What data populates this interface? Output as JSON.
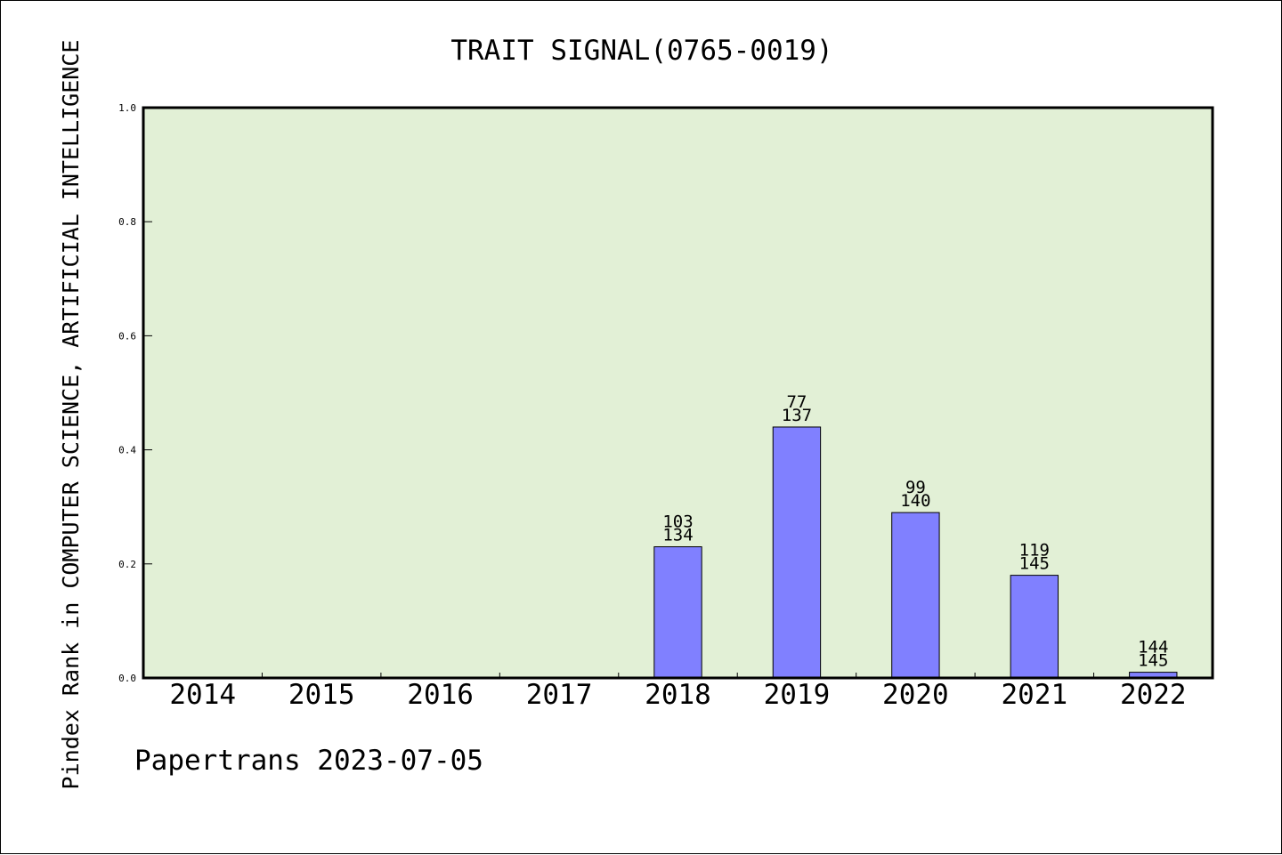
{
  "chart_data": {
    "type": "bar",
    "title": "TRAIT SIGNAL(0765-0019)",
    "ylabel": "Pindex Rank in COMPUTER SCIENCE, ARTIFICIAL INTELLIGENCE",
    "xlabel": "",
    "footer": "Papertrans 2023-07-05",
    "categories": [
      "2014",
      "2015",
      "2016",
      "2017",
      "2018",
      "2019",
      "2020",
      "2021",
      "2022"
    ],
    "values": [
      null,
      null,
      null,
      null,
      0.23,
      0.44,
      0.29,
      0.18,
      0.01
    ],
    "label_top": [
      "",
      "",
      "",
      "",
      "103",
      "77",
      "99",
      "119",
      "144"
    ],
    "label_bottom": [
      "",
      "",
      "",
      "",
      "134",
      "137",
      "140",
      "145",
      "145"
    ],
    "ylim": [
      0,
      1.0
    ],
    "yticks": [
      "0.0",
      "0.2",
      "0.4",
      "0.6",
      "0.8",
      "1.0"
    ],
    "grid": false,
    "legend": "none",
    "colors": {
      "plot_background": "#e2f0d6",
      "bar_fill": "#8080ff",
      "bar_stroke": "#000000",
      "axis": "#000000"
    }
  }
}
